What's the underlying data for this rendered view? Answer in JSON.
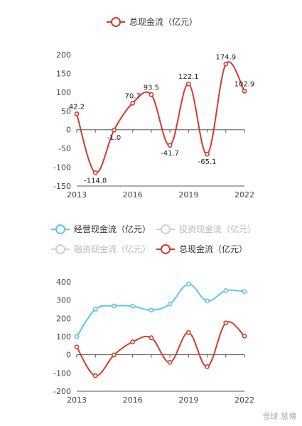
{
  "chart_data": [
    {
      "type": "line",
      "x": [
        2013,
        2014,
        2015,
        2016,
        2017,
        2018,
        2019,
        2020,
        2021,
        2022
      ],
      "xticks": [
        "2013",
        "2016",
        "2019",
        "2022"
      ],
      "ylim": [
        -150,
        200
      ],
      "yticks": [
        -150,
        -100,
        -50,
        0,
        50,
        100,
        150,
        200
      ],
      "legend": "top",
      "grid": false,
      "series": [
        {
          "name": "总现金流（亿元）",
          "color": "#d63a2f",
          "values": [
            42.2,
            -114.8,
            -1.0,
            70.7,
            93.5,
            -41.7,
            122.1,
            -65.1,
            174.9,
            102.9
          ],
          "labels": [
            "42.2",
            "-114.8",
            "-1.0",
            "70.7",
            "93.5",
            "-41.7",
            "122.1",
            "-65.1",
            "174.9",
            "102.9"
          ]
        }
      ]
    },
    {
      "type": "line",
      "x": [
        2013,
        2014,
        2015,
        2016,
        2017,
        2018,
        2019,
        2020,
        2021,
        2022
      ],
      "xticks": [
        "2013",
        "2016",
        "2019",
        "2022"
      ],
      "ylim": [
        -200,
        400
      ],
      "yticks": [
        -200,
        -100,
        0,
        100,
        200,
        300,
        400
      ],
      "legend": "top",
      "grid": false,
      "series": [
        {
          "name": "经营现金流（亿元）",
          "color": "#5cc6e6",
          "visible": true,
          "values": [
            100,
            250,
            268,
            267,
            245,
            278,
            388,
            295,
            352,
            347
          ]
        },
        {
          "name": "投资现金流（亿元）",
          "color": "#c8c8c8",
          "visible": false
        },
        {
          "name": "融资现金流（亿元）",
          "color": "#c8c8c8",
          "visible": false
        },
        {
          "name": "总现金流（亿元）",
          "color": "#d63a2f",
          "visible": true,
          "values": [
            42.2,
            -114.8,
            -1.0,
            70.7,
            93.5,
            -41.7,
            122.1,
            -65.1,
            174.9,
            102.9
          ]
        }
      ]
    }
  ],
  "watermark": "雪球 慧博"
}
